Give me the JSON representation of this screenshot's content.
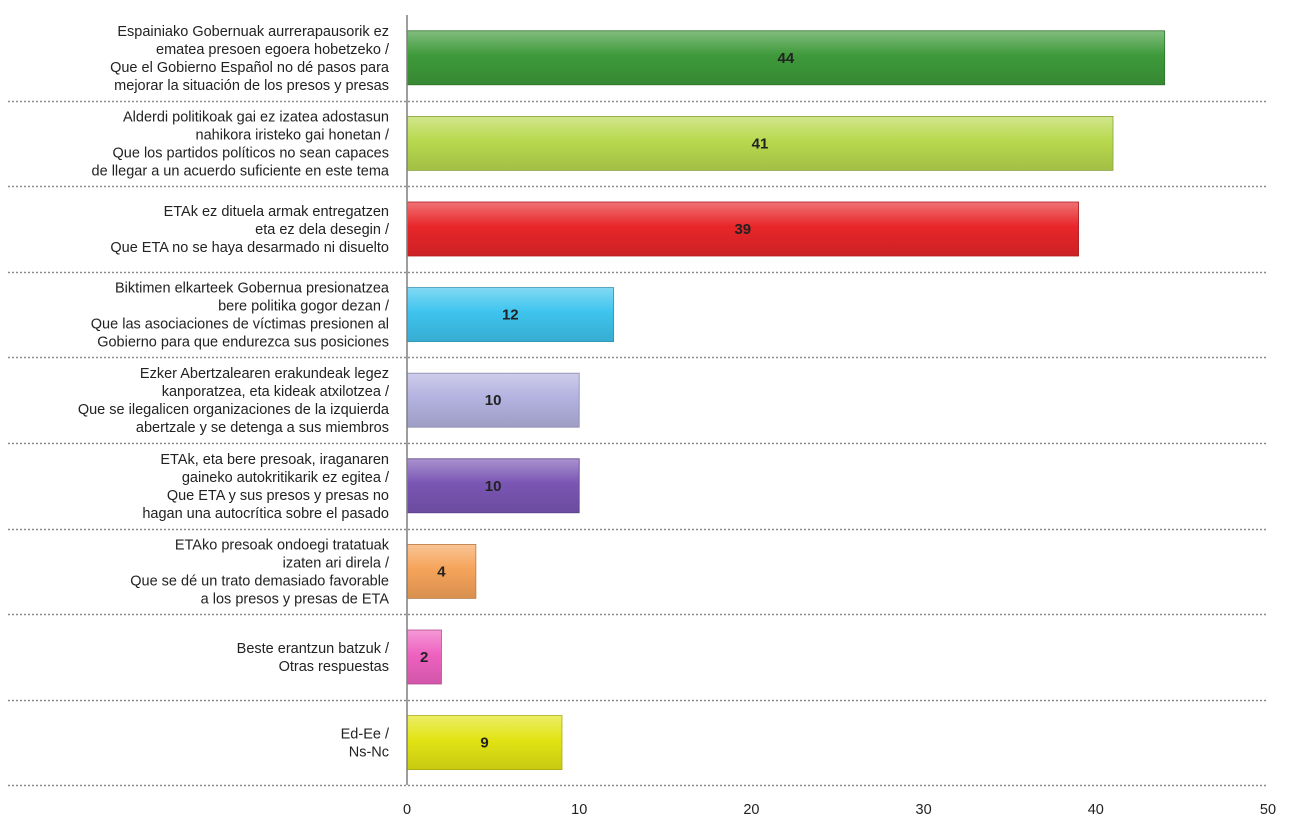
{
  "chart_data": {
    "type": "bar",
    "orientation": "horizontal",
    "categories": [
      [
        "Espainiako Gobernuak aurrerapausorik ez",
        "ematea presoen egoera hobetzeko /",
        "Que el Gobierno Español no dé pasos para",
        "mejorar la situación de los presos y presas"
      ],
      [
        "Alderdi politikoak gai ez izatea adostasun",
        "nahikora iristeko gai honetan /",
        "Que los partidos políticos no sean capaces",
        "de llegar a un acuerdo suficiente en este tema"
      ],
      [
        "ETAk ez dituela armak entregatzen",
        "eta ez dela desegin /",
        "Que ETA no se haya desarmado ni disuelto"
      ],
      [
        "Biktimen elkarteek Gobernua presionatzea",
        "bere politika gogor dezan /",
        "Que las asociaciones de víctimas presionen al",
        "Gobierno para que endurezca sus posiciones"
      ],
      [
        "Ezker Abertzalearen erakundeak legez",
        "kanporatzea, eta kideak atxilotzea /",
        "Que se ilegalicen organizaciones de la izquierda",
        "abertzale y se detenga a sus miembros"
      ],
      [
        "ETAk, eta bere presoak, iraganaren",
        "gaineko autokritikarik ez egitea /",
        "Que ETA y sus presos y presas no",
        "hagan una autocrítica sobre el pasado"
      ],
      [
        "ETAko presoak ondoegi tratatuak",
        "izaten  ari direla /",
        "Que se dé un trato demasiado favorable",
        "a los presos y presas de ETA"
      ],
      [
        "Beste erantzun batzuk /",
        "Otras respuestas"
      ],
      [
        "Ed-Ee /",
        "Ns-Nc"
      ]
    ],
    "values": [
      44,
      41,
      39,
      12,
      10,
      10,
      4,
      2,
      9
    ],
    "value_labels": [
      "44",
      "41",
      "39",
      "12",
      "10",
      "10",
      "4",
      "2",
      "9"
    ],
    "colors": [
      "#3e9a3a",
      "#b8d94e",
      "#e8262a",
      "#3ec4ee",
      "#b4b2e0",
      "#7a56b4",
      "#f6a45a",
      "#ee62c0",
      "#e2e414"
    ],
    "xlim": [
      0,
      50
    ],
    "xticks": [
      "0",
      "10",
      "20",
      "30",
      "40",
      "50"
    ],
    "grid": false,
    "legend": "none",
    "title": "",
    "xlabel": "",
    "ylabel": ""
  }
}
